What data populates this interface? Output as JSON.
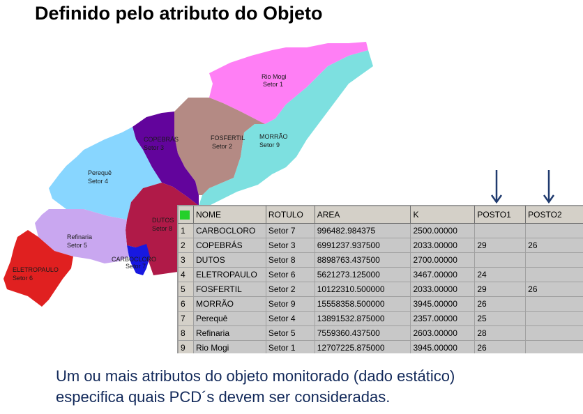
{
  "title": "Definido pelo atributo do Objeto",
  "map": {
    "regions": [
      {
        "name": "Rio Mogi",
        "sector": "Setor 1",
        "color": "#ff7ff5"
      },
      {
        "name": "MORRÃO",
        "sector": "Setor 9",
        "color": "#7de0e0"
      },
      {
        "name": "FOSFERTIL",
        "sector": "Setor 2",
        "color": "#b48a84"
      },
      {
        "name": "COPEBRÁS",
        "sector": "Setor 3",
        "color": "#62049c"
      },
      {
        "name": "Perequê",
        "sector": "Setor 4",
        "color": "#88d6ff"
      },
      {
        "name": "DUTOS",
        "sector": "Setor 8",
        "color": "#b01a48"
      },
      {
        "name": "Refinaria",
        "sector": "Setor 5",
        "color": "#c9a7f0"
      },
      {
        "name": "ELETROPAULO",
        "sector": "Setor 6",
        "color": "#e02020"
      },
      {
        "name": "CARBOCLORO",
        "sector": "Setor 7",
        "color": "#1818e0"
      }
    ]
  },
  "table": {
    "columns": [
      "NOME",
      "ROTULO",
      "AREA",
      "K",
      "POSTO1",
      "POSTO2"
    ],
    "rows": [
      {
        "n": "1",
        "cells": [
          "CARBOCLORO",
          "Setor 7",
          "996482.984375",
          "2500.00000",
          "",
          ""
        ]
      },
      {
        "n": "2",
        "cells": [
          "COPEBRÁS",
          "Setor 3",
          "6991237.937500",
          "2033.00000",
          "29",
          "26"
        ]
      },
      {
        "n": "3",
        "cells": [
          "DUTOS",
          "Setor 8",
          "8898763.437500",
          "2700.00000",
          "",
          ""
        ]
      },
      {
        "n": "4",
        "cells": [
          "ELETROPAULO",
          "Setor 6",
          "5621273.125000",
          "3467.00000",
          "24",
          ""
        ]
      },
      {
        "n": "5",
        "cells": [
          "FOSFERTIL",
          "Setor 2",
          "10122310.500000",
          "2033.00000",
          "29",
          "26"
        ]
      },
      {
        "n": "6",
        "cells": [
          "MORRÃO",
          "Setor 9",
          "15558358.500000",
          "3945.00000",
          "26",
          ""
        ]
      },
      {
        "n": "7",
        "cells": [
          "Perequê",
          "Setor 4",
          "13891532.875000",
          "2357.00000",
          "25",
          ""
        ]
      },
      {
        "n": "8",
        "cells": [
          "Refinaria",
          "Setor 5",
          "7559360.437500",
          "2603.00000",
          "28",
          ""
        ]
      },
      {
        "n": "9",
        "cells": [
          "Rio Mogi",
          "Setor 1",
          "12707225.875000",
          "3945.00000",
          "26",
          ""
        ]
      }
    ]
  },
  "caption": {
    "line1": "Um ou mais atributos do objeto monitorado (dado estático)",
    "line2": "especifica quais PCD´s devem ser consideradas."
  },
  "colors": {
    "caption": "#12295a",
    "arrow": "#1f3a6e",
    "header_marker": "#24d02a"
  }
}
